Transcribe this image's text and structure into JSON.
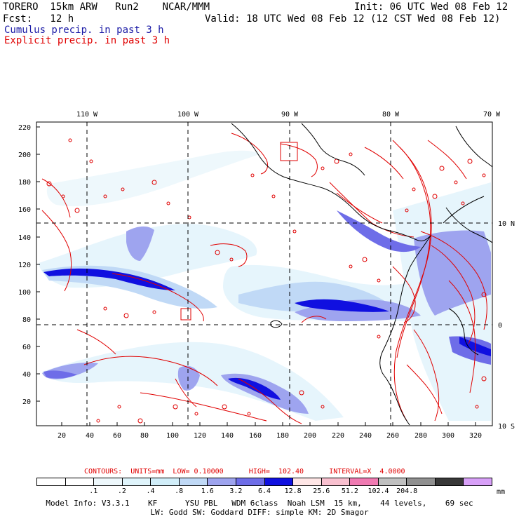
{
  "header": {
    "model": "TORERO  15km ARW   Run2    NCAR/MMM",
    "init": "Init: 06 UTC Wed 08 Feb 12",
    "fcst": "Fcst:   12 h",
    "valid": "Valid: 18 UTC Wed 08 Feb 12 (12 CST Wed 08 Feb 12)",
    "field1": "Cumulus precip. in past 3 h",
    "field2": "Explicit precip. in past 3 h"
  },
  "map": {
    "lon_labels": [
      "110 W",
      "100 W",
      "90 W",
      "80 W",
      "70 W"
    ],
    "lat_labels": [
      "10 N",
      "0",
      "10 S"
    ],
    "y_ticks": [
      "220",
      "200",
      "180",
      "160",
      "140",
      "120",
      "100",
      "80",
      "60",
      "40",
      "20"
    ],
    "x_ticks": [
      "20",
      "40",
      "60",
      "80",
      "100",
      "120",
      "140",
      "160",
      "180",
      "200",
      "220",
      "240",
      "260",
      "280",
      "300",
      "320"
    ],
    "colors": {
      "contour": "#e00000",
      "coast": "#000000",
      "grid": "#000000"
    }
  },
  "contours_line": "CONTOURS:  UNITS=mm  LOW= 0.10000      HIGH=  102.40      INTERVAL=X  4.0000",
  "legend": {
    "colors": [
      "#ffffff",
      "#ffffff",
      "#eef8fc",
      "#dff4fb",
      "#d1eef9",
      "#c0d9f6",
      "#9ea4ef",
      "#6e6de8",
      "#1010e0",
      "#ffe6e6",
      "#f9c0cf",
      "#f07ab2",
      "#c0c0c0",
      "#909090",
      "#383838",
      "#d8a0f8"
    ],
    "labels": [
      ".1",
      ".2",
      ".4",
      ".8",
      "1.6",
      "3.2",
      "6.4",
      "12.8",
      "25.6",
      "51.2",
      "102.4",
      "204.8"
    ],
    "units": "mm"
  },
  "footer": {
    "line1": "Model Info: V3.3.1    KF      YSU PBL   WDM 6class  Noah LSM  15 km,    44 levels,    69 sec",
    "line2": "LW: Godd SW: Goddard DIFF: simple KM: 2D Smagor"
  }
}
